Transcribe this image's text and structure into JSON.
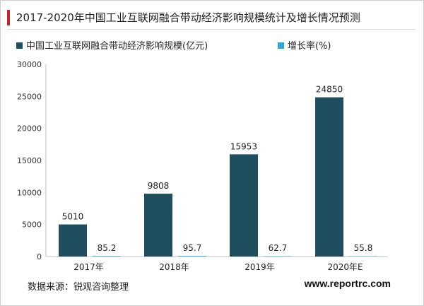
{
  "title": "2017-2020年中国工业互联网融合带动经济影响规模统计及增长情况预测",
  "source": "数据来源：锐观咨询整理",
  "website": "www.reportrc.com",
  "colors": {
    "accent": "#c0272d",
    "bar_value": "#1f4e5f",
    "bar_growth": "#2ba6d8"
  },
  "chart_data": {
    "type": "bar",
    "categories": [
      "2017年",
      "2018年",
      "2019年",
      "2020年E"
    ],
    "series": [
      {
        "name": "中国工业互联网融合带动经济影响规模(亿元)",
        "values": [
          5010,
          9808,
          15953,
          24850
        ]
      },
      {
        "name": "增长率(%)",
        "values": [
          85.2,
          95.7,
          62.7,
          55.8
        ]
      }
    ],
    "value_labels": [
      "5010",
      "9808",
      "15953",
      "24850"
    ],
    "growth_labels": [
      "85.2",
      "95.7",
      "62.7",
      "55.8"
    ],
    "yticks": [
      "0",
      "5000",
      "10000",
      "15000",
      "20000",
      "25000",
      "30000"
    ],
    "ylim": [
      0,
      30000
    ],
    "legend": "top-left",
    "grid": false
  }
}
